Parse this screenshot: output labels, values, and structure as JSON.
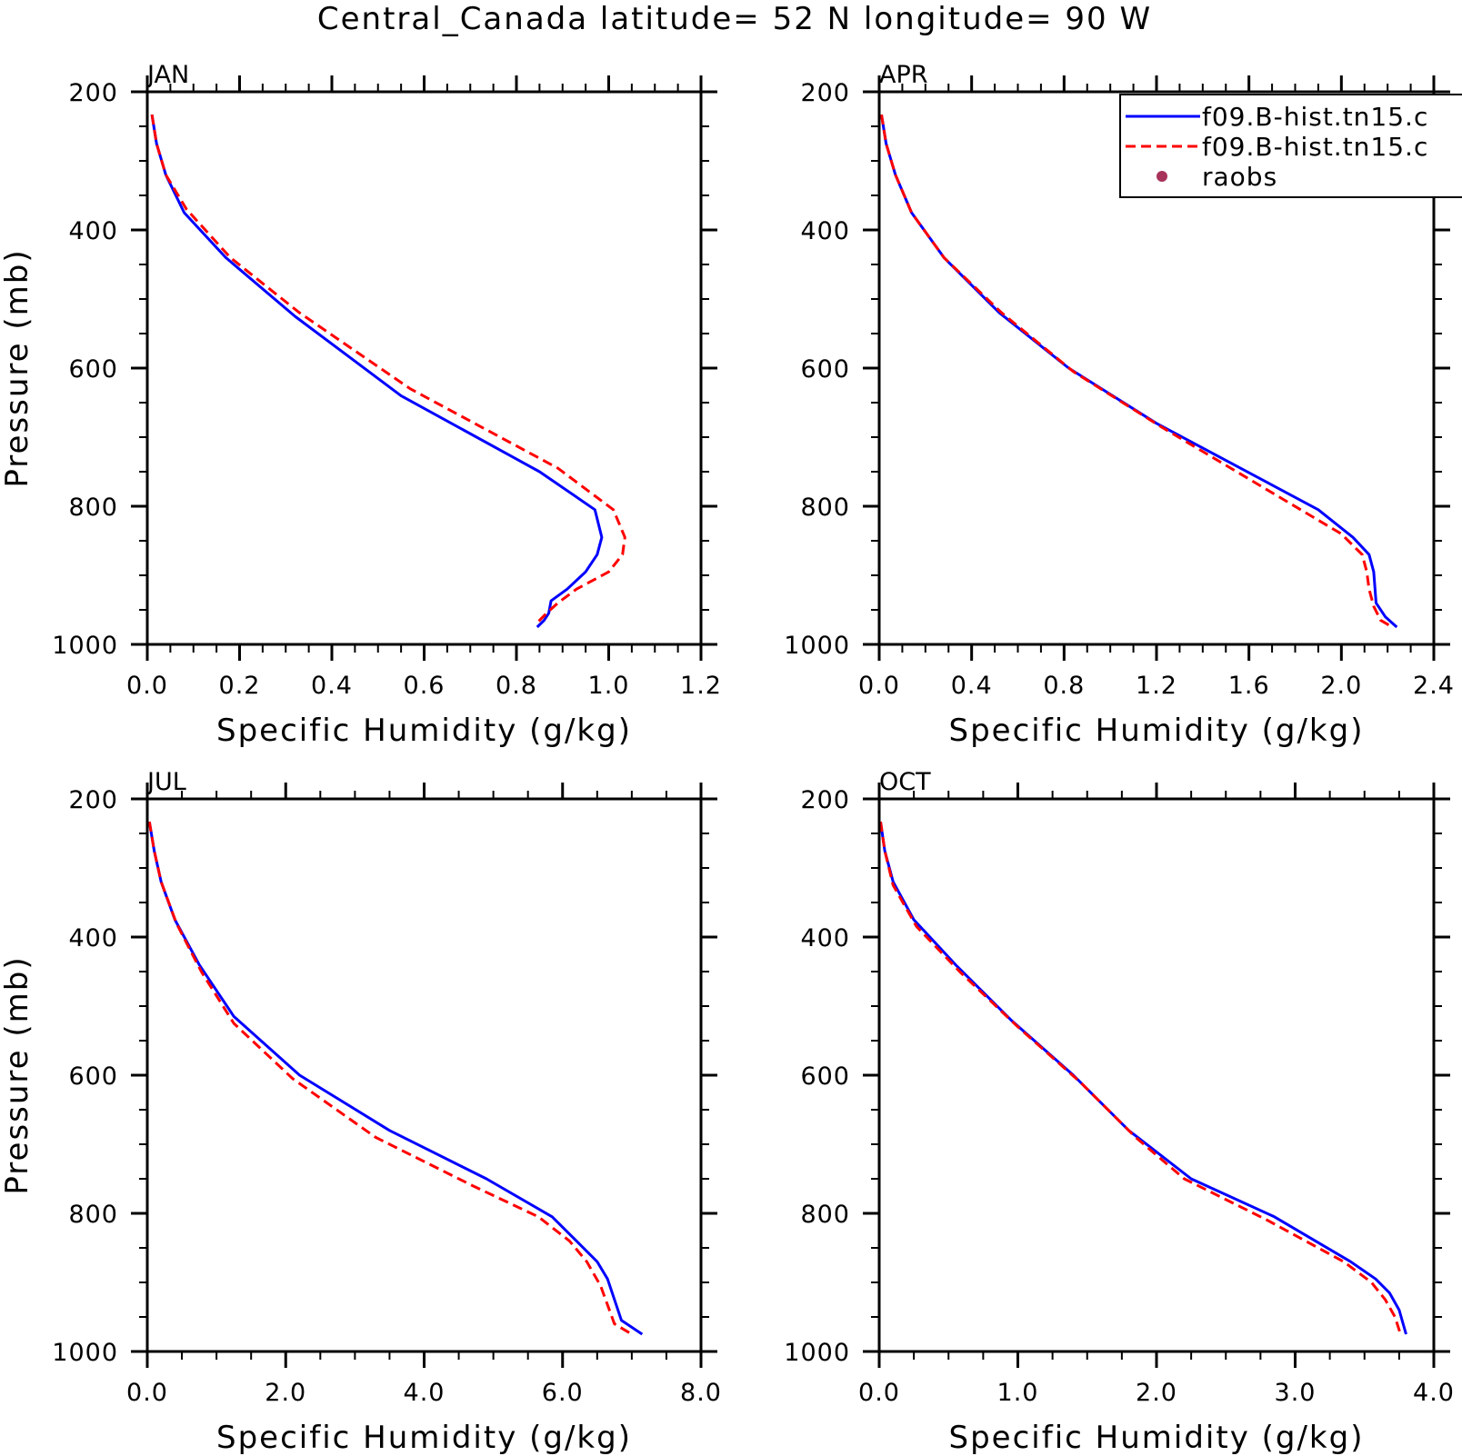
{
  "title": "Central_Canada  latitude= 52 N longitude= 90 W",
  "legend": {
    "entries": [
      {
        "label": "f09.B-hist.tn15.c",
        "style": "solid",
        "color": "#0000ff"
      },
      {
        "label": "f09.B-hist.tn15.c",
        "style": "dashed",
        "color": "#ff0000"
      },
      {
        "label": "raobs",
        "style": "dot",
        "color": "#a8335a"
      }
    ]
  },
  "chart_data": [
    {
      "type": "line",
      "panel_label": "JAN",
      "xlabel": "Specific Humidity (g/kg)",
      "ylabel": "Pressure (mb)",
      "xlim": [
        0,
        1.2
      ],
      "ylim": [
        1000,
        200
      ],
      "xticks": [
        "0.0",
        "0.2",
        "0.4",
        "0.6",
        "0.8",
        "1.0",
        "1.2"
      ],
      "yticks": [
        "200",
        "400",
        "600",
        "800",
        "1000"
      ],
      "series": [
        {
          "color": "#0000ff",
          "style": "solid",
          "x": [
            0.01,
            0.02,
            0.04,
            0.08,
            0.17,
            0.32,
            0.55,
            0.85,
            0.97,
            0.985,
            0.975,
            0.95,
            0.91,
            0.875,
            0.87,
            0.86,
            0.845
          ],
          "y": [
            233,
            275,
            320,
            375,
            440,
            525,
            640,
            750,
            805,
            845,
            870,
            895,
            920,
            937,
            955,
            965,
            975
          ]
        },
        {
          "color": "#ff0000",
          "style": "dashed",
          "x": [
            0.01,
            0.02,
            0.04,
            0.085,
            0.18,
            0.33,
            0.57,
            0.89,
            1.01,
            1.035,
            1.03,
            1.0,
            0.93,
            0.89,
            0.865,
            0.84
          ],
          "y": [
            233,
            275,
            320,
            370,
            440,
            520,
            630,
            745,
            805,
            845,
            870,
            895,
            920,
            940,
            955,
            972
          ]
        }
      ]
    },
    {
      "type": "line",
      "panel_label": "APR",
      "xlabel": "Specific Humidity (g/kg)",
      "ylabel": "",
      "xlim": [
        0,
        2.4
      ],
      "ylim": [
        1000,
        200
      ],
      "xticks": [
        "0.0",
        "0.4",
        "0.8",
        "1.2",
        "1.6",
        "2.0",
        "2.4"
      ],
      "yticks": [
        "200",
        "400",
        "600",
        "800",
        "1000"
      ],
      "series": [
        {
          "color": "#0000ff",
          "style": "solid",
          "x": [
            0.01,
            0.03,
            0.07,
            0.14,
            0.28,
            0.52,
            0.82,
            1.2,
            1.9,
            2.05,
            2.12,
            2.14,
            2.15,
            2.19,
            2.24
          ],
          "y": [
            233,
            275,
            320,
            375,
            440,
            520,
            600,
            680,
            805,
            845,
            870,
            895,
            940,
            960,
            975
          ]
        },
        {
          "color": "#ff0000",
          "style": "dashed",
          "x": [
            0.01,
            0.03,
            0.07,
            0.14,
            0.28,
            0.53,
            0.84,
            1.22,
            2.0,
            2.09,
            2.11,
            2.12,
            2.14,
            2.17,
            2.22
          ],
          "y": [
            233,
            275,
            320,
            375,
            440,
            520,
            605,
            685,
            840,
            870,
            895,
            920,
            945,
            965,
            975
          ]
        }
      ]
    },
    {
      "type": "line",
      "panel_label": "JUL",
      "xlabel": "Specific Humidity (g/kg)",
      "ylabel": "Pressure (mb)",
      "xlim": [
        0,
        8
      ],
      "ylim": [
        1000,
        200
      ],
      "xticks": [
        "0.0",
        "2.0",
        "4.0",
        "6.0",
        "8.0"
      ],
      "yticks": [
        "200",
        "400",
        "600",
        "800",
        "1000"
      ],
      "series": [
        {
          "color": "#0000ff",
          "style": "solid",
          "x": [
            0.03,
            0.1,
            0.2,
            0.4,
            0.75,
            1.25,
            2.2,
            3.5,
            4.9,
            5.85,
            6.25,
            6.5,
            6.65,
            6.85,
            7.15
          ],
          "y": [
            233,
            275,
            320,
            375,
            440,
            515,
            600,
            680,
            750,
            805,
            845,
            870,
            895,
            955,
            975
          ]
        },
        {
          "color": "#ff0000",
          "style": "dashed",
          "x": [
            0.03,
            0.1,
            0.2,
            0.42,
            0.78,
            1.25,
            2.1,
            3.3,
            4.7,
            5.65,
            6.1,
            6.35,
            6.55,
            6.75,
            7.0
          ],
          "y": [
            233,
            275,
            320,
            380,
            450,
            525,
            605,
            690,
            760,
            805,
            840,
            870,
            905,
            960,
            975
          ]
        }
      ]
    },
    {
      "type": "line",
      "panel_label": "OCT",
      "xlabel": "Specific Humidity (g/kg)",
      "ylabel": "",
      "xlim": [
        0,
        4
      ],
      "ylim": [
        1000,
        200
      ],
      "xticks": [
        "0.0",
        "1.0",
        "2.0",
        "3.0",
        "4.0"
      ],
      "yticks": [
        "200",
        "400",
        "600",
        "800",
        "1000"
      ],
      "series": [
        {
          "color": "#0000ff",
          "style": "solid",
          "x": [
            0.01,
            0.04,
            0.1,
            0.25,
            0.55,
            0.95,
            1.4,
            1.8,
            2.25,
            2.85,
            3.4,
            3.58,
            3.68,
            3.75,
            3.8
          ],
          "y": [
            233,
            275,
            320,
            375,
            440,
            520,
            600,
            680,
            750,
            805,
            870,
            895,
            915,
            940,
            975
          ]
        },
        {
          "color": "#ff0000",
          "style": "dashed",
          "x": [
            0.01,
            0.04,
            0.1,
            0.27,
            0.58,
            1.0,
            1.45,
            1.85,
            2.2,
            2.8,
            3.35,
            3.55,
            3.65,
            3.72,
            3.76
          ],
          "y": [
            233,
            275,
            325,
            385,
            450,
            530,
            610,
            690,
            750,
            810,
            870,
            900,
            925,
            950,
            975
          ]
        }
      ]
    }
  ]
}
